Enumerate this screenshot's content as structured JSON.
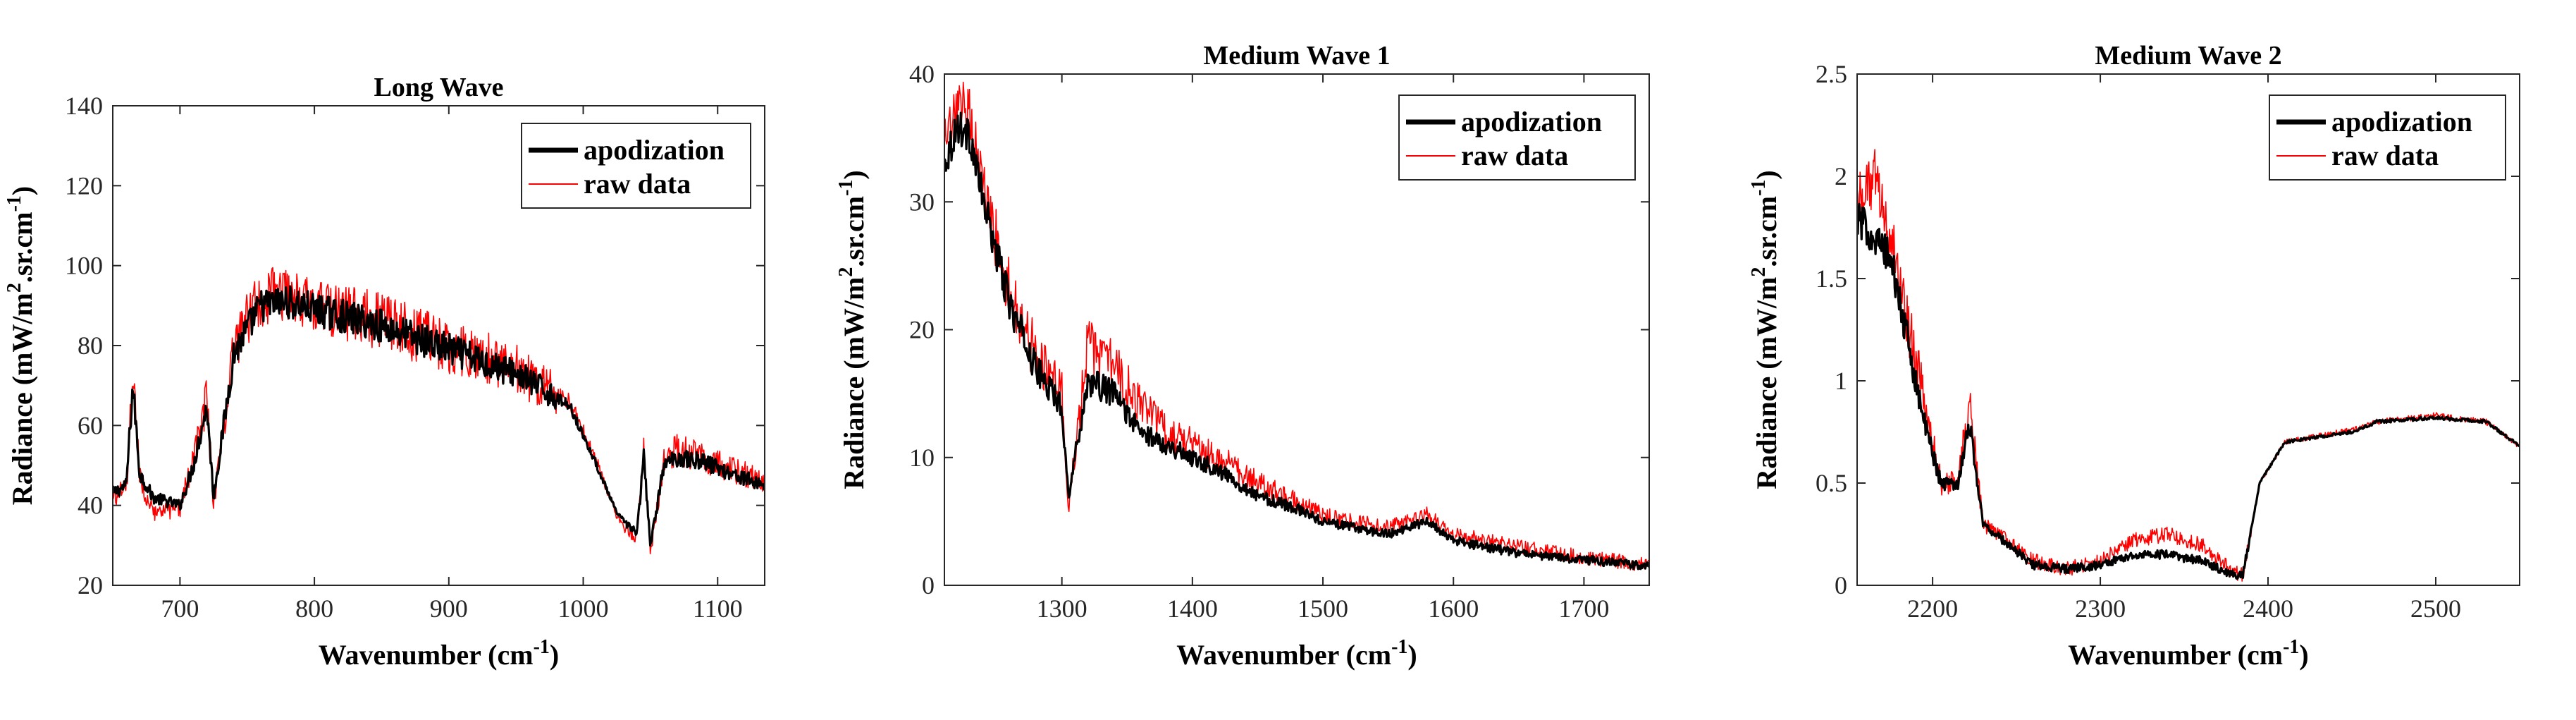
{
  "chart_data": [
    {
      "type": "line",
      "title": "Long Wave",
      "xlabel": "Wavenumber (cm",
      "xlabel_sup": "-1",
      "xlabel_end": ")",
      "ylabel_parts": [
        "Radiance (mW/m",
        "2",
        ".sr.cm",
        "-1",
        ")"
      ],
      "xlim": [
        650,
        1135
      ],
      "ylim": [
        20,
        140
      ],
      "xticks": [
        700,
        800,
        900,
        1000,
        1100
      ],
      "yticks": [
        20,
        40,
        60,
        80,
        100,
        120,
        140
      ],
      "legend": {
        "placement": "top-right",
        "entries": [
          "apodization",
          "raw data"
        ]
      },
      "series": [
        {
          "name": "apodization",
          "color": "#000000",
          "x": [
            650,
            660,
            665,
            670,
            680,
            700,
            710,
            720,
            725,
            740,
            760,
            780,
            800,
            850,
            900,
            950,
            990,
            1010,
            1025,
            1040,
            1045,
            1050,
            1060,
            1070,
            1090,
            1110,
            1135
          ],
          "y": [
            43,
            45,
            70,
            48,
            42,
            40,
            50,
            65,
            42,
            78,
            90,
            91,
            89,
            85,
            79,
            73,
            65,
            50,
            38,
            33,
            52,
            30,
            50,
            52,
            51,
            48,
            45
          ]
        },
        {
          "name": "raw data",
          "color": "#ff0000",
          "x": [
            650,
            660,
            665,
            670,
            680,
            700,
            710,
            720,
            725,
            740,
            760,
            780,
            800,
            850,
            900,
            950,
            990,
            1010,
            1025,
            1040,
            1045,
            1050,
            1060,
            1070,
            1090,
            1110,
            1135
          ],
          "y": [
            42,
            44,
            72,
            47,
            38,
            39,
            52,
            67,
            40,
            80,
            92,
            93,
            90,
            86,
            80,
            74,
            66,
            51,
            37,
            31,
            54,
            28,
            51,
            54,
            52,
            49,
            46
          ]
        }
      ]
    },
    {
      "type": "line",
      "title": "Medium Wave 1",
      "xlabel": "Wavenumber (cm",
      "xlabel_sup": "-1",
      "xlabel_end": ")",
      "ylabel_parts": [
        "Radiance (mW/m",
        "2",
        ".sr.cm",
        "-1",
        ")"
      ],
      "xlim": [
        1210,
        1750
      ],
      "ylim": [
        0,
        40
      ],
      "xticks": [
        1300,
        1400,
        1500,
        1600,
        1700
      ],
      "yticks": [
        0,
        10,
        20,
        30,
        40
      ],
      "legend": {
        "placement": "top-right",
        "entries": [
          "apodization",
          "raw data"
        ]
      },
      "series": [
        {
          "name": "apodization",
          "color": "#000000",
          "x": [
            1210,
            1220,
            1230,
            1240,
            1260,
            1280,
            1300,
            1305,
            1320,
            1340,
            1360,
            1380,
            1400,
            1420,
            1450,
            1480,
            1500,
            1550,
            1580,
            1600,
            1650,
            1700,
            1750
          ],
          "y": [
            33,
            36,
            35,
            30,
            22,
            17,
            14,
            7,
            16,
            15,
            12,
            11,
            10,
            9,
            7,
            6,
            5,
            4,
            5,
            3.5,
            2.5,
            2,
            1.5
          ]
        },
        {
          "name": "raw data",
          "color": "#ff0000",
          "x": [
            1210,
            1220,
            1230,
            1240,
            1260,
            1280,
            1300,
            1305,
            1320,
            1340,
            1360,
            1380,
            1400,
            1420,
            1450,
            1480,
            1500,
            1550,
            1580,
            1600,
            1650,
            1700,
            1750
          ],
          "y": [
            34,
            37,
            37,
            31,
            23,
            18,
            15,
            6,
            19,
            17,
            14,
            12,
            11,
            10,
            8,
            6.5,
            5.5,
            4.5,
            5.5,
            4,
            3,
            2.2,
            1.6
          ]
        }
      ]
    },
    {
      "type": "line",
      "title": "Medium Wave 2",
      "xlabel": "Wavenumber (cm",
      "xlabel_sup": "-1",
      "xlabel_end": ")",
      "ylabel_parts": [
        "Radiance (mW/m",
        "2",
        ".sr.cm",
        "-1",
        ")"
      ],
      "xlim": [
        2155,
        2550
      ],
      "ylim": [
        0,
        2.5
      ],
      "xticks": [
        2200,
        2300,
        2400,
        2500
      ],
      "yticks": [
        0,
        0.5,
        1,
        1.5,
        2,
        2.5
      ],
      "legend": {
        "placement": "top-right",
        "entries": [
          "apodization",
          "raw data"
        ]
      },
      "series": [
        {
          "name": "apodization",
          "color": "#000000",
          "x": [
            2155,
            2165,
            2175,
            2185,
            2195,
            2205,
            2215,
            2222,
            2230,
            2245,
            2260,
            2280,
            2300,
            2320,
            2340,
            2360,
            2380,
            2385,
            2395,
            2410,
            2450,
            2465,
            2500,
            2530,
            2550
          ],
          "y": [
            1.8,
            1.7,
            1.6,
            1.2,
            0.8,
            0.5,
            0.5,
            0.8,
            0.3,
            0.2,
            0.1,
            0.08,
            0.1,
            0.15,
            0.15,
            0.12,
            0.05,
            0.05,
            0.5,
            0.7,
            0.75,
            0.8,
            0.82,
            0.8,
            0.68
          ]
        },
        {
          "name": "raw data",
          "color": "#ff0000",
          "x": [
            2155,
            2165,
            2175,
            2185,
            2195,
            2205,
            2215,
            2222,
            2230,
            2245,
            2260,
            2280,
            2300,
            2320,
            2340,
            2360,
            2380,
            2385,
            2395,
            2410,
            2450,
            2465,
            2500,
            2530,
            2550
          ],
          "y": [
            1.9,
            2.0,
            1.7,
            1.3,
            0.9,
            0.5,
            0.5,
            0.9,
            0.3,
            0.22,
            0.12,
            0.08,
            0.12,
            0.22,
            0.25,
            0.2,
            0.06,
            0.05,
            0.5,
            0.7,
            0.76,
            0.8,
            0.83,
            0.8,
            0.68
          ]
        }
      ]
    }
  ]
}
